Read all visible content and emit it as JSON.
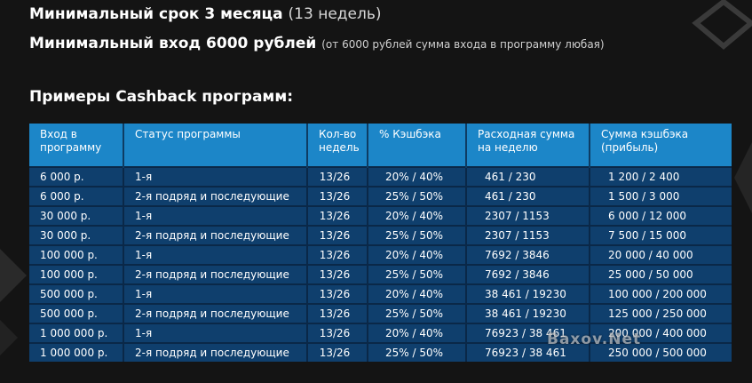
{
  "header": {
    "min_term_bold": "Минимальный срок 3 месяца",
    "min_term_light": "(13 недель)",
    "min_entry_bold": "Минимальный вход 6000 рублей",
    "min_entry_note": "(от 6000 рублей сумма входа в программу любая)"
  },
  "examples_title": "Примеры Cashback программ:",
  "table": {
    "columns": [
      "Вход в программу",
      "Статус программы",
      "Кол-во недель",
      "% Кэшбэка",
      "Расходная сумма на неделю",
      "Сумма кэшбэка (прибыль)"
    ],
    "rows": [
      [
        "6 000 р.",
        "1-я",
        "13/26",
        "20% / 40%",
        "461 / 230",
        "1 200 / 2 400"
      ],
      [
        "6 000 р.",
        "2-я подряд и последующие",
        "13/26",
        "25% / 50%",
        "461 / 230",
        "1 500 / 3 000"
      ],
      [
        "30 000 р.",
        "1-я",
        "13/26",
        "20% / 40%",
        "2307 / 1153",
        "6 000 / 12 000"
      ],
      [
        "30 000 р.",
        "2-я подряд и последующие",
        "13/26",
        "25% / 50%",
        "2307 / 1153",
        "7 500 / 15 000"
      ],
      [
        "100 000 р.",
        "1-я",
        "13/26",
        "20% / 40%",
        "7692 / 3846",
        "20 000 / 40 000"
      ],
      [
        "100 000 р.",
        "2-я подряд и последующие",
        "13/26",
        "25% / 50%",
        "7692 / 3846",
        "25 000 / 50 000"
      ],
      [
        "500 000 р.",
        "1-я",
        "13/26",
        "20% / 40%",
        "38 461 / 19230",
        "100 000 / 200 000"
      ],
      [
        "500 000 р.",
        "2-я подряд и последующие",
        "13/26",
        "25% / 50%",
        "38 461 / 19230",
        "125 000 / 250 000"
      ],
      [
        "1 000 000 р.",
        "1-я",
        "13/26",
        "20% / 40%",
        "76923 / 38 461",
        "200 000 / 400 000"
      ],
      [
        "1 000 000 р.",
        "2-я подряд и последующие",
        "13/26",
        "25% / 50%",
        "76923 / 38 461",
        "250 000 / 500 000"
      ]
    ]
  },
  "watermark": "Baxov.Net",
  "colors": {
    "background": "#141414",
    "header_blue": "#1c86c8",
    "row_blue": "#0f3f6d",
    "accent_yellow": "#b8b000"
  }
}
